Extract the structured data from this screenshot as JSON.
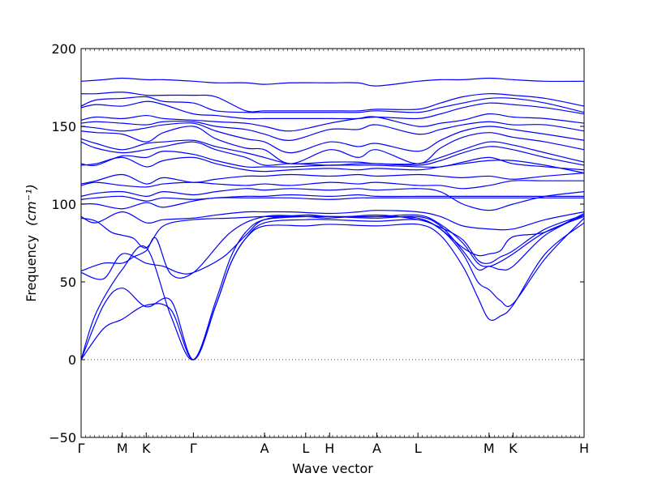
{
  "chart_data": {
    "type": "line",
    "xlabel": "Wave vector",
    "ylabel": "Frequency",
    "ylabel_unit": "(cm⁻¹)",
    "ylim": [
      -50,
      200
    ],
    "yticks": [
      -50,
      0,
      50,
      100,
      150,
      200
    ],
    "zero_line": true,
    "grid": false,
    "line_color": "#0000ff",
    "xlim": [
      0,
      6.72
    ],
    "xticks": [
      {
        "label": "Γ",
        "x": 0
      },
      {
        "label": "M",
        "x": 0.55
      },
      {
        "label": "K",
        "x": 0.87
      },
      {
        "label": "Γ",
        "x": 1.5
      },
      {
        "label": "A",
        "x": 2.45
      },
      {
        "label": "L",
        "x": 3.0
      },
      {
        "label": "H",
        "x": 3.32
      },
      {
        "label": "A",
        "x": 3.95
      },
      {
        "label": "L",
        "x": 4.5
      },
      {
        "label": "M",
        "x": 5.45
      },
      {
        "label": "K",
        "x": 5.77
      },
      {
        "label": "H",
        "x": 6.72
      }
    ],
    "series": [
      {
        "x": [
          0,
          0.3,
          0.55,
          0.87,
          1.2,
          1.5,
          1.8,
          2.0,
          2.2,
          2.45,
          3.0,
          3.32,
          3.95,
          4.5,
          4.8,
          5.1,
          5.3,
          5.45,
          5.6,
          5.77,
          6.2,
          6.72
        ],
        "values": [
          0,
          20,
          26,
          35,
          32,
          0,
          35,
          62,
          78,
          86,
          86,
          87,
          86,
          87,
          80,
          60,
          40,
          26,
          28,
          35,
          68,
          88
        ]
      },
      {
        "x": [
          0,
          0.3,
          0.55,
          0.87,
          1.2,
          1.5,
          1.8,
          2.0,
          2.2,
          2.45,
          3.0,
          3.32,
          3.95,
          4.5,
          4.8,
          5.1,
          5.3,
          5.45,
          5.6,
          5.77,
          6.2,
          6.72
        ],
        "values": [
          0,
          35,
          46,
          34,
          38,
          0,
          35,
          62,
          78,
          88,
          90,
          90,
          89,
          90,
          84,
          68,
          50,
          45,
          38,
          36,
          65,
          91
        ]
      },
      {
        "x": [
          0,
          0.2,
          0.55,
          0.87,
          1.2,
          1.5,
          1.8,
          2.0,
          2.2,
          2.45,
          3.0,
          3.32,
          3.95,
          4.5,
          4.8,
          5.1,
          5.3,
          5.45,
          5.6,
          5.77,
          6.2,
          6.72
        ],
        "values": [
          0,
          30,
          58,
          72,
          28,
          0,
          38,
          66,
          82,
          90,
          92,
          92,
          91,
          92,
          86,
          70,
          58,
          60,
          58,
          60,
          80,
          93
        ]
      },
      {
        "x": [
          0,
          0.3,
          0.55,
          0.87,
          1.1,
          1.3,
          1.5,
          1.9,
          2.2,
          2.45,
          3.0,
          3.32,
          3.95,
          4.5,
          4.8,
          5.1,
          5.3,
          5.45,
          5.6,
          5.77,
          6.2,
          6.72
        ],
        "values": [
          56,
          52,
          68,
          62,
          60,
          56,
          56,
          66,
          80,
          90,
          93,
          92,
          92,
          93,
          87,
          75,
          62,
          60,
          63,
          68,
          82,
          92
        ]
      },
      {
        "x": [
          0,
          0.3,
          0.55,
          0.7,
          0.87,
          1.0,
          1.2,
          1.5,
          2.0,
          2.45,
          3.0,
          3.32,
          3.95,
          4.5,
          4.8,
          5.1,
          5.3,
          5.45,
          5.6,
          5.77,
          6.2,
          6.72
        ],
        "values": [
          57,
          62,
          62,
          66,
          70,
          78,
          55,
          56,
          82,
          92,
          92,
          91,
          93,
          90,
          85,
          77,
          64,
          62,
          66,
          70,
          84,
          93
        ]
      },
      {
        "x": [
          0,
          0.2,
          0.4,
          0.55,
          0.7,
          0.87,
          1.1,
          1.5,
          2.0,
          2.45,
          3.0,
          3.32,
          3.95,
          4.5,
          4.8,
          5.1,
          5.3,
          5.45,
          5.6,
          5.77,
          6.2,
          6.72
        ],
        "values": [
          91,
          89,
          82,
          80,
          78,
          72,
          86,
          90,
          91,
          92,
          92,
          92,
          92,
          91,
          84,
          72,
          67,
          68,
          70,
          79,
          82,
          94
        ]
      },
      {
        "x": [
          0,
          0.2,
          0.55,
          0.87,
          1.1,
          1.5,
          1.8,
          2.2,
          2.45,
          2.8,
          3.32,
          3.7,
          3.95,
          4.5,
          4.8,
          5.1,
          5.45,
          5.77,
          6.2,
          6.72
        ],
        "values": [
          92,
          88,
          95,
          88,
          90,
          91,
          93,
          95,
          95,
          95,
          94,
          95,
          96,
          95,
          92,
          86,
          84,
          84,
          90,
          95
        ]
      },
      {
        "x": [
          0,
          0.2,
          0.55,
          0.87,
          1.1,
          1.5,
          1.8,
          2.2,
          2.45,
          2.8,
          3.32,
          3.7,
          3.95,
          4.5,
          4.8,
          5.1,
          5.45,
          5.77,
          6.2,
          6.72
        ],
        "values": [
          100,
          100,
          97,
          101,
          98,
          102,
          104,
          104,
          104,
          104,
          103,
          104,
          104,
          104,
          104,
          104,
          104,
          104,
          104,
          104
        ]
      },
      {
        "x": [
          0,
          0.2,
          0.55,
          0.87,
          1.1,
          1.5,
          1.8,
          2.2,
          2.45,
          2.8,
          3.32,
          3.7,
          3.95,
          4.5,
          4.8,
          5.1,
          5.45,
          5.77,
          6.2,
          6.72
        ],
        "values": [
          103,
          104,
          105,
          102,
          104,
          103,
          104,
          105,
          105,
          106,
          105,
          106,
          105,
          105,
          105,
          105,
          105,
          105,
          105,
          105
        ]
      },
      {
        "x": [
          0,
          0.2,
          0.55,
          0.87,
          1.1,
          1.5,
          1.8,
          2.2,
          2.45,
          2.8,
          3.32,
          3.7,
          3.95,
          4.5,
          4.8,
          5.1,
          5.45,
          5.77,
          6.2,
          6.72
        ],
        "values": [
          105,
          107,
          108,
          105,
          108,
          106,
          108,
          110,
          109,
          110,
          109,
          110,
          109,
          110,
          108,
          100,
          96,
          100,
          105,
          108
        ]
      },
      {
        "x": [
          0,
          0.2,
          0.55,
          0.87,
          1.1,
          1.5,
          1.8,
          2.2,
          2.45,
          2.8,
          3.32,
          3.7,
          3.95,
          4.5,
          4.8,
          5.1,
          5.45,
          5.77,
          6.2,
          6.72
        ],
        "values": [
          112,
          114,
          112,
          111,
          113,
          114,
          113,
          112,
          113,
          112,
          114,
          113,
          114,
          112,
          112,
          110,
          112,
          115,
          115,
          115
        ]
      },
      {
        "x": [
          0,
          0.2,
          0.55,
          0.87,
          1.1,
          1.5,
          1.8,
          2.2,
          2.45,
          2.8,
          3.32,
          3.7,
          3.95,
          4.5,
          4.8,
          5.1,
          5.45,
          5.77,
          6.2,
          6.72
        ],
        "values": [
          113,
          115,
          119,
          113,
          117,
          114,
          116,
          118,
          118,
          119,
          118,
          119,
          118,
          119,
          118,
          117,
          118,
          116,
          118,
          120
        ]
      },
      {
        "x": [
          0,
          0.2,
          0.55,
          0.87,
          1.1,
          1.5,
          1.8,
          2.2,
          2.45,
          2.8,
          3.32,
          3.7,
          3.95,
          4.5,
          4.8,
          5.1,
          5.45,
          5.77,
          6.2,
          6.72
        ],
        "values": [
          125,
          126,
          130,
          124,
          128,
          130,
          126,
          122,
          121,
          122,
          123,
          122,
          123,
          122,
          124,
          126,
          128,
          128,
          125,
          120
        ]
      },
      {
        "x": [
          0,
          0.2,
          0.55,
          0.87,
          1.1,
          1.5,
          1.8,
          2.2,
          2.45,
          2.8,
          3.32,
          3.7,
          3.95,
          4.5,
          4.8,
          5.1,
          5.45,
          5.77,
          6.2,
          6.72
        ],
        "values": [
          126,
          125,
          131,
          130,
          134,
          132,
          128,
          124,
          124,
          124,
          125,
          125,
          125,
          124,
          124,
          127,
          130,
          126,
          124,
          122
        ]
      },
      {
        "x": [
          0,
          0.2,
          0.55,
          0.87,
          1.1,
          1.5,
          1.8,
          2.2,
          2.45,
          2.8,
          3.32,
          3.7,
          3.95,
          4.5,
          4.8,
          5.1,
          5.45,
          5.77,
          6.2,
          6.72
        ],
        "values": [
          140,
          136,
          133,
          135,
          137,
          140,
          135,
          130,
          125,
          126,
          125,
          126,
          126,
          125,
          128,
          133,
          137,
          135,
          130,
          125
        ]
      },
      {
        "x": [
          0,
          0.2,
          0.55,
          0.87,
          1.1,
          1.5,
          1.8,
          2.2,
          2.45,
          2.8,
          3.32,
          3.7,
          3.95,
          4.5,
          4.8,
          5.1,
          5.45,
          5.77,
          6.2,
          6.72
        ],
        "values": [
          142,
          139,
          135,
          139,
          140,
          141,
          137,
          133,
          130,
          126,
          127,
          127,
          126,
          126,
          130,
          135,
          140,
          138,
          133,
          127
        ]
      },
      {
        "x": [
          0,
          0.2,
          0.55,
          0.87,
          1.1,
          1.5,
          1.8,
          2.2,
          2.45,
          2.8,
          3.32,
          3.7,
          3.95,
          4.5,
          4.8,
          5.1,
          5.45,
          5.77,
          6.2,
          6.72
        ],
        "values": [
          147,
          146,
          145,
          140,
          146,
          150,
          142,
          136,
          135,
          126,
          135,
          130,
          135,
          126,
          136,
          143,
          146,
          143,
          140,
          135
        ]
      },
      {
        "x": [
          0,
          0.2,
          0.55,
          0.87,
          1.1,
          1.5,
          1.8,
          2.2,
          2.45,
          2.8,
          3.32,
          3.7,
          3.95,
          4.5,
          4.8,
          5.1,
          5.45,
          5.77,
          6.2,
          6.72
        ],
        "values": [
          150,
          149,
          147,
          149,
          151,
          152,
          147,
          142,
          140,
          133,
          140,
          137,
          139,
          134,
          141,
          147,
          150,
          148,
          145,
          141
        ]
      },
      {
        "x": [
          0,
          0.2,
          0.55,
          0.87,
          1.1,
          1.5,
          1.8,
          2.2,
          2.45,
          2.8,
          3.32,
          3.7,
          3.95,
          4.5,
          4.8,
          5.1,
          5.45,
          5.77,
          6.2,
          6.72
        ],
        "values": [
          152,
          153,
          152,
          151,
          153,
          153,
          150,
          148,
          145,
          141,
          148,
          148,
          151,
          145,
          148,
          151,
          153,
          151,
          151,
          147
        ]
      },
      {
        "x": [
          0,
          0.2,
          0.55,
          0.87,
          1.1,
          1.5,
          1.8,
          2.2,
          2.45,
          2.8,
          3.32,
          3.7,
          3.95,
          4.5,
          4.8,
          5.1,
          5.45,
          5.77,
          6.2,
          6.72
        ],
        "values": [
          154,
          156,
          155,
          157,
          155,
          154,
          153,
          152,
          150,
          147,
          152,
          155,
          156,
          150,
          152,
          154,
          158,
          156,
          155,
          152
        ]
      },
      {
        "x": [
          0,
          0.2,
          0.55,
          0.87,
          1.1,
          1.5,
          1.8,
          2.2,
          2.45,
          2.8,
          3.32,
          3.7,
          3.95,
          4.5,
          4.8,
          5.1,
          5.45,
          5.77,
          6.2,
          6.72
        ],
        "values": [
          162,
          164,
          163,
          166,
          164,
          158,
          157,
          155,
          155,
          155,
          155,
          155,
          156,
          155,
          158,
          162,
          165,
          164,
          162,
          158
        ]
      },
      {
        "x": [
          0,
          0.2,
          0.55,
          0.87,
          1.1,
          1.5,
          1.8,
          2.2,
          2.45,
          2.8,
          3.32,
          3.7,
          3.95,
          4.5,
          4.8,
          5.1,
          5.45,
          5.77,
          6.2,
          6.72
        ],
        "values": [
          163,
          167,
          168,
          169,
          166,
          165,
          160,
          159,
          159,
          159,
          159,
          159,
          160,
          159,
          162,
          165,
          168,
          168,
          165,
          159
        ]
      },
      {
        "x": [
          0,
          0.2,
          0.55,
          0.87,
          1.1,
          1.5,
          1.8,
          2.2,
          2.45,
          2.8,
          3.32,
          3.7,
          3.95,
          4.5,
          4.8,
          5.1,
          5.45,
          5.77,
          6.2,
          6.72
        ],
        "values": [
          171,
          171,
          172,
          170,
          170,
          170,
          169,
          160,
          160,
          160,
          160,
          160,
          161,
          161,
          165,
          169,
          171,
          170,
          168,
          163
        ]
      },
      {
        "x": [
          0,
          0.3,
          0.55,
          0.87,
          1.1,
          1.5,
          1.8,
          2.2,
          2.45,
          2.8,
          3.32,
          3.7,
          3.95,
          4.5,
          4.8,
          5.1,
          5.45,
          5.77,
          6.2,
          6.72
        ],
        "values": [
          179,
          180,
          181,
          180,
          180,
          179,
          178,
          178,
          177,
          178,
          178,
          178,
          176,
          179,
          180,
          180,
          181,
          180,
          179,
          179
        ]
      }
    ]
  }
}
